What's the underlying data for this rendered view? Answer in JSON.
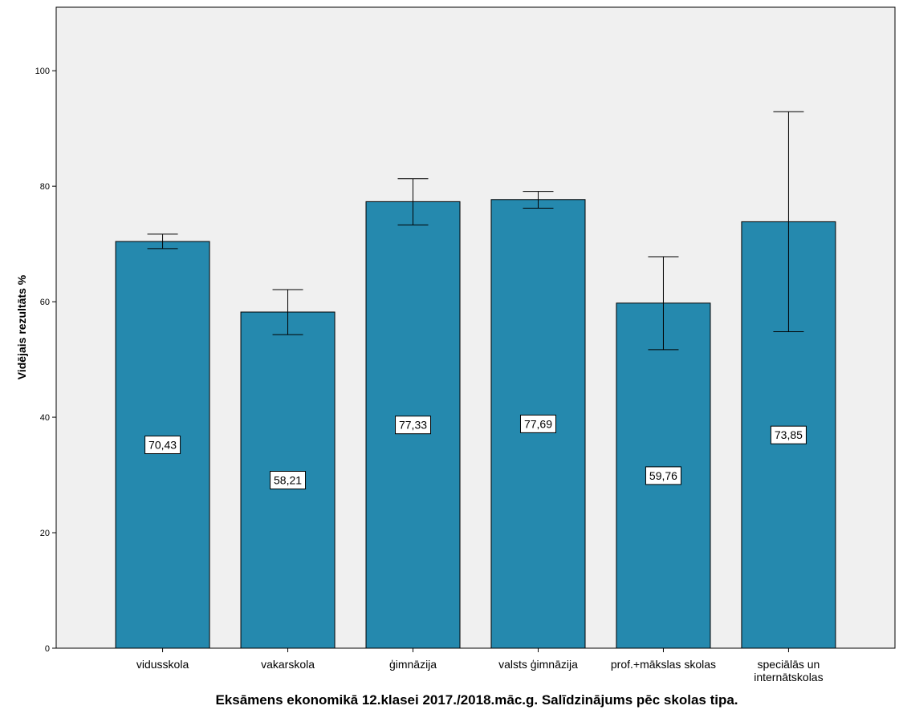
{
  "chart_data": {
    "type": "bar",
    "title": "Eksāmens ekonomikā 12.klasei 2017./2018.māc.g. Salīdzinājums pēc skolas tipa.",
    "xlabel": "",
    "ylabel": "Vidējais rezultāts %",
    "ylim": [
      0,
      111
    ],
    "yticks": [
      0,
      20,
      40,
      60,
      80,
      100
    ],
    "grid": false,
    "categories": [
      [
        "vidusskola"
      ],
      [
        "vakarskola"
      ],
      [
        "ģimnāzija"
      ],
      [
        "valsts ģimnāzija"
      ],
      [
        "prof.+mākslas skolas"
      ],
      [
        "speciālās un",
        "internātskolas"
      ]
    ],
    "values": [
      70.43,
      58.21,
      77.33,
      77.69,
      59.76,
      73.85
    ],
    "value_labels": [
      "70,43",
      "58,21",
      "77,33",
      "77,69",
      "59,76",
      "73,85"
    ],
    "error_low": [
      69.2,
      54.3,
      73.3,
      76.2,
      51.7,
      54.8
    ],
    "error_high": [
      71.7,
      62.1,
      81.3,
      79.1,
      67.8,
      92.9
    ],
    "colors": {
      "bar": "#2589AE",
      "plot_background": "#F0F0F0",
      "label_box": "#FFFFFF"
    }
  }
}
